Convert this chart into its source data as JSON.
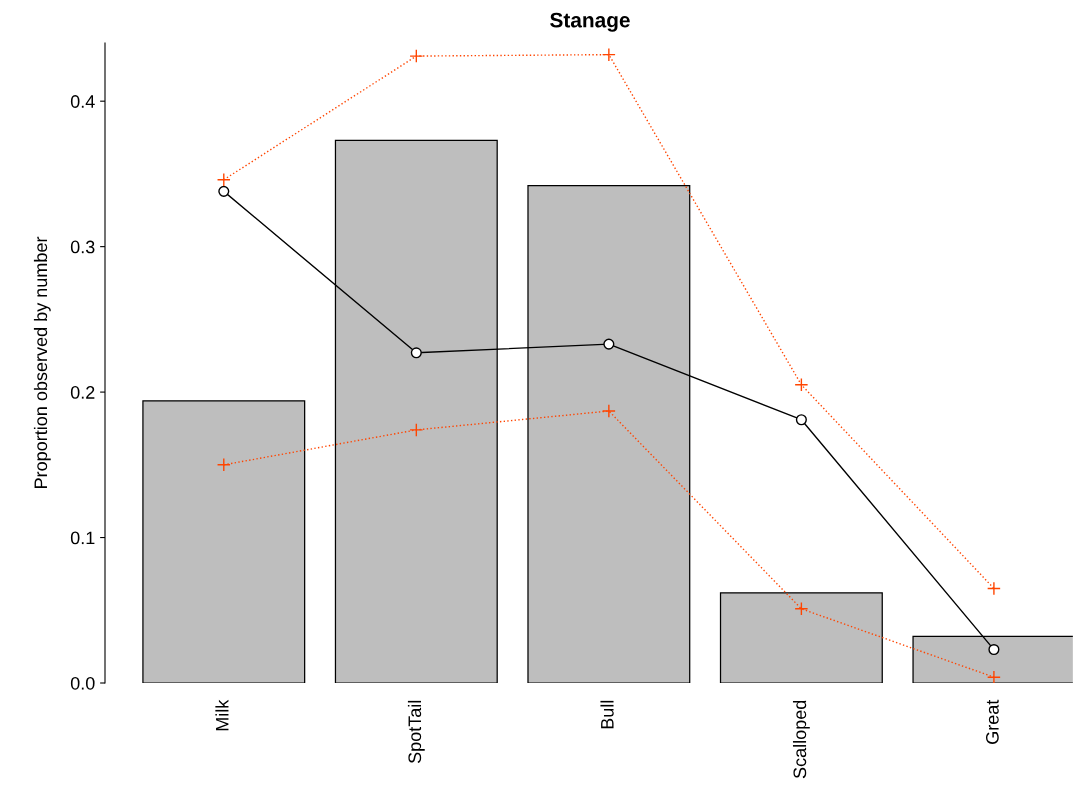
{
  "chart_data": {
    "type": "bar",
    "title": "Stanage",
    "ylabel": "Proportion observed by number",
    "categories": [
      "Milk",
      "SpotTail",
      "Bull",
      "Scalloped",
      "Great"
    ],
    "series": [
      {
        "color": "#bebebe",
        "values": [
          0.194,
          0.373,
          0.342,
          0.062,
          0.032
        ]
      },
      {
        "type": "line",
        "color": "#000000",
        "marker": "circle",
        "line_style": "solid",
        "values": [
          0.338,
          0.227,
          0.233,
          0.181,
          0.023
        ]
      },
      {
        "type": "line",
        "color": "#ff4500",
        "marker": "cross",
        "line_style": "dotted",
        "values": [
          0.346,
          0.431,
          0.432,
          0.205,
          0.065
        ]
      },
      {
        "type": "line",
        "color": "#ff4500",
        "marker": "cross",
        "line_style": "dotted",
        "values": [
          0.15,
          0.174,
          0.187,
          0.051,
          0.004
        ]
      }
    ],
    "ylim": [
      0,
      0.44
    ],
    "yticks": [
      {
        "value": 0,
        "label": "0.0"
      },
      0.1,
      0.2,
      0.3,
      0.4
    ],
    "grid": false,
    "legend": false
  }
}
